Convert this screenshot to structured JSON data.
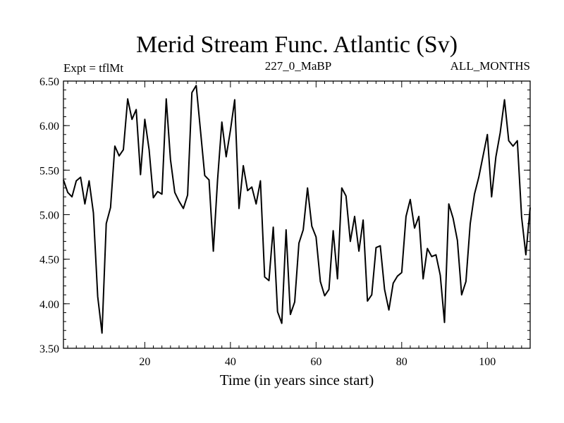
{
  "chart_data": {
    "type": "line",
    "title": "Merid Stream Func. Atlantic (Sv)",
    "subtitle_left": "Expt = tflMt",
    "subtitle_center": "227_0_MaBP",
    "subtitle_right": "ALL_MONTHS",
    "xlabel": "Time (in years since start)",
    "ylabel": "",
    "xlim": [
      1,
      110
    ],
    "ylim": [
      3.5,
      6.5
    ],
    "x_ticks_major": [
      20,
      40,
      60,
      80,
      100
    ],
    "x_tick_labels": [
      "20",
      "40",
      "60",
      "80",
      "100"
    ],
    "y_ticks_major": [
      3.5,
      4.0,
      4.5,
      5.0,
      5.5,
      6.0,
      6.5
    ],
    "y_tick_labels": [
      "3.50",
      "4.00",
      "4.50",
      "5.00",
      "5.50",
      "6.00",
      "6.50"
    ],
    "grid": false,
    "series": [
      {
        "name": "Merid Stream Func. Atlantic",
        "color": "#000000",
        "x": [
          1,
          2,
          3,
          4,
          5,
          6,
          7,
          8,
          9,
          10,
          11,
          12,
          13,
          14,
          15,
          16,
          17,
          18,
          19,
          20,
          21,
          22,
          23,
          24,
          25,
          26,
          27,
          28,
          29,
          30,
          31,
          32,
          33,
          34,
          35,
          36,
          37,
          38,
          39,
          40,
          41,
          42,
          43,
          44,
          45,
          46,
          47,
          48,
          49,
          50,
          51,
          52,
          53,
          54,
          55,
          56,
          57,
          58,
          59,
          60,
          61,
          62,
          63,
          64,
          65,
          66,
          67,
          68,
          69,
          70,
          71,
          72,
          73,
          74,
          75,
          76,
          77,
          78,
          79,
          80,
          81,
          82,
          83,
          84,
          85,
          86,
          87,
          88,
          89,
          90,
          91,
          92,
          93,
          94,
          95,
          96,
          97,
          98,
          99,
          100,
          101,
          102,
          103,
          104,
          105,
          106,
          107,
          108,
          109,
          110
        ],
        "values": [
          5.39,
          5.25,
          5.2,
          5.38,
          5.42,
          5.12,
          5.38,
          5.02,
          4.08,
          3.67,
          4.9,
          5.08,
          5.77,
          5.66,
          5.73,
          6.3,
          6.07,
          6.18,
          5.45,
          6.07,
          5.73,
          5.19,
          5.26,
          5.23,
          6.3,
          5.62,
          5.25,
          5.15,
          5.07,
          5.22,
          6.37,
          6.45,
          5.95,
          5.44,
          5.39,
          4.59,
          5.39,
          6.04,
          5.65,
          5.95,
          6.29,
          5.07,
          5.55,
          5.27,
          5.31,
          5.12,
          5.38,
          4.3,
          4.26,
          4.86,
          3.91,
          3.78,
          4.83,
          3.88,
          4.02,
          4.68,
          4.83,
          5.3,
          4.87,
          4.75,
          4.25,
          4.09,
          4.16,
          4.82,
          4.28,
          5.3,
          5.21,
          4.7,
          4.98,
          4.59,
          4.94,
          4.03,
          4.1,
          4.63,
          4.65,
          4.16,
          3.93,
          4.23,
          4.31,
          4.35,
          4.98,
          5.17,
          4.85,
          4.98,
          4.28,
          4.62,
          4.53,
          4.55,
          4.32,
          3.79,
          5.12,
          4.96,
          4.71,
          4.1,
          4.25,
          4.9,
          5.23,
          5.42,
          5.66,
          5.9,
          5.2,
          5.65,
          5.92,
          6.29,
          5.83,
          5.77,
          5.83,
          4.97,
          4.55,
          5.08
        ]
      }
    ]
  }
}
